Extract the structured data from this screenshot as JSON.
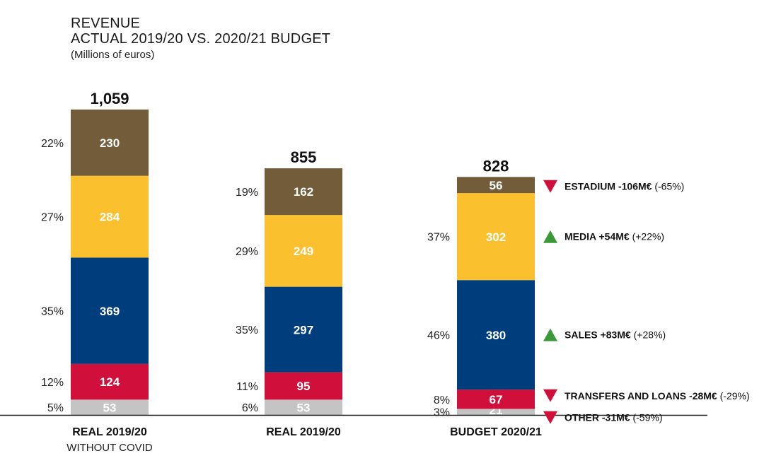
{
  "title": {
    "line1": "REVENUE",
    "line2": "ACTUAL 2019/20 VS. 2020/21 BUDGET",
    "unit": "(Millions of euros)"
  },
  "chart_data": {
    "type": "bar",
    "stacked": true,
    "unit": "Millions of euros",
    "categories": [
      {
        "label": "REAL 2019/20",
        "sublabel": "WITHOUT COVID",
        "total": "1,059"
      },
      {
        "label": "REAL 2019/20",
        "sublabel": "",
        "total": "855"
      },
      {
        "label": "BUDGET 2020/21",
        "sublabel": "",
        "total": "828"
      }
    ],
    "series": [
      {
        "name": "OTHER",
        "color": "#c4c4c4",
        "values": [
          53,
          53,
          21
        ],
        "percents": [
          "5%",
          "6%",
          "3%"
        ]
      },
      {
        "name": "TRANSFERS AND LOANS",
        "color": "#d0103a",
        "values": [
          124,
          95,
          67
        ],
        "percents": [
          "12%",
          "11%",
          "8%"
        ]
      },
      {
        "name": "SALES",
        "color": "#003d7c",
        "values": [
          369,
          297,
          380
        ],
        "percents": [
          "35%",
          "35%",
          "46%"
        ]
      },
      {
        "name": "MEDIA",
        "color": "#fbc02d",
        "values": [
          284,
          249,
          302
        ],
        "percents": [
          "27%",
          "29%",
          "37%"
        ]
      },
      {
        "name": "ESTADIUM",
        "color": "#735c3a",
        "values": [
          230,
          162,
          56
        ],
        "percents": [
          "22%",
          "19%",
          ""
        ]
      }
    ],
    "annotations": [
      {
        "series": "ESTADIUM",
        "direction": "down",
        "label": "ESTADIUM -106M€",
        "change": "(-65%)"
      },
      {
        "series": "MEDIA",
        "direction": "up",
        "label": "MEDIA +54M€",
        "change": "(+22%)"
      },
      {
        "series": "SALES",
        "direction": "up",
        "label": "SALES +83M€",
        "change": "(+28%)"
      },
      {
        "series": "TRANSFERS AND LOANS",
        "direction": "down",
        "label": "TRANSFERS AND LOANS -28M€",
        "change": "(-29%)"
      },
      {
        "series": "OTHER",
        "direction": "down",
        "label": "OTHER -31M€",
        "change": "(-59%)"
      }
    ],
    "colors": {
      "up": "#3a9a3a",
      "down": "#d0103a",
      "text_on_bar": "#ffffff",
      "axis": "#1a1a1a"
    }
  }
}
